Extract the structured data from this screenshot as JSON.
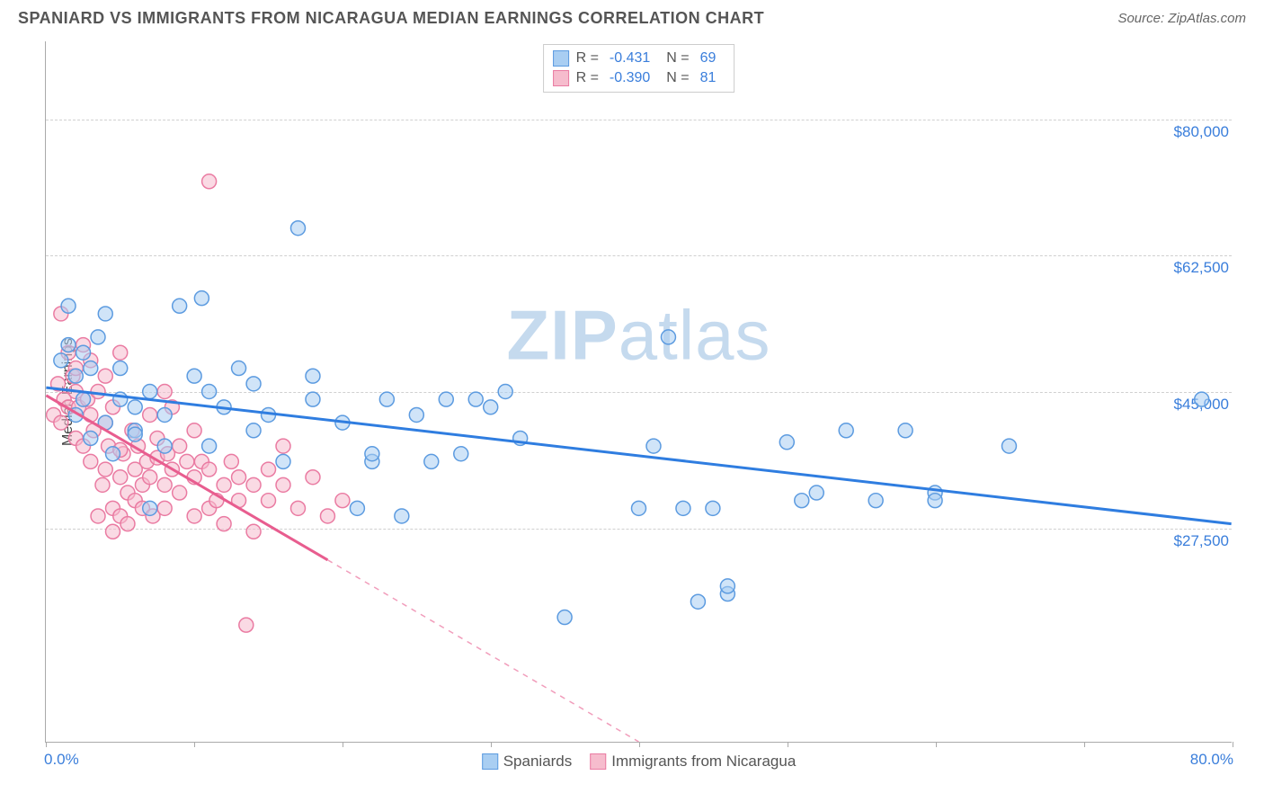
{
  "title": "SPANIARD VS IMMIGRANTS FROM NICARAGUA MEDIAN EARNINGS CORRELATION CHART",
  "source": "Source: ZipAtlas.com",
  "watermark": {
    "bold": "ZIP",
    "light": "atlas"
  },
  "yaxis_title": "Median Earnings",
  "chart": {
    "type": "scatter",
    "xlim": [
      0,
      80
    ],
    "ylim": [
      0,
      90000
    ],
    "xtick_positions": [
      0,
      10,
      20,
      30,
      40,
      50,
      60,
      70,
      80
    ],
    "xaxis_label_left": "0.0%",
    "xaxis_label_right": "80.0%",
    "ytick_values": [
      27500,
      45000,
      62500,
      80000
    ],
    "ytick_labels": [
      "$27,500",
      "$45,000",
      "$62,500",
      "$80,000"
    ],
    "grid_color": "#d0d0d0",
    "background_color": "#ffffff",
    "marker_radius": 8,
    "marker_stroke_width": 1.5,
    "series": [
      {
        "name": "Spaniards",
        "color_fill": "#a9cef2",
        "color_stroke": "#5c9be0",
        "fill_opacity": 0.55,
        "correlation_R": "-0.431",
        "correlation_N": "69",
        "trend": {
          "x1": 0,
          "y1": 45500,
          "x2": 80,
          "y2": 28000,
          "solid_until_x": 80,
          "color": "#2f7de0",
          "width": 3
        },
        "points": [
          [
            1,
            49000
          ],
          [
            1.5,
            51000
          ],
          [
            1.5,
            56000
          ],
          [
            2,
            47000
          ],
          [
            2,
            42000
          ],
          [
            2.5,
            44000
          ],
          [
            2.5,
            50000
          ],
          [
            3,
            48000
          ],
          [
            3,
            39000
          ],
          [
            3.5,
            52000
          ],
          [
            4,
            41000
          ],
          [
            4,
            55000
          ],
          [
            4.5,
            37000
          ],
          [
            5,
            44000
          ],
          [
            5,
            48000
          ],
          [
            6,
            40000
          ],
          [
            6,
            43000
          ],
          [
            7,
            45000
          ],
          [
            7,
            30000
          ],
          [
            8,
            42000
          ],
          [
            8,
            38000
          ],
          [
            9,
            56000
          ],
          [
            10,
            47000
          ],
          [
            10.5,
            57000
          ],
          [
            11,
            38000
          ],
          [
            12,
            43000
          ],
          [
            13,
            48000
          ],
          [
            14,
            40000
          ],
          [
            14,
            46000
          ],
          [
            15,
            42000
          ],
          [
            16,
            36000
          ],
          [
            17,
            66000
          ],
          [
            18,
            47000
          ],
          [
            18,
            44000
          ],
          [
            20,
            41000
          ],
          [
            21,
            30000
          ],
          [
            22,
            36000
          ],
          [
            22,
            37000
          ],
          [
            23,
            44000
          ],
          [
            24,
            29000
          ],
          [
            25,
            42000
          ],
          [
            26,
            36000
          ],
          [
            27,
            44000
          ],
          [
            28,
            37000
          ],
          [
            29,
            44000
          ],
          [
            30,
            43000
          ],
          [
            31,
            45000
          ],
          [
            32,
            39000
          ],
          [
            35,
            16000
          ],
          [
            40,
            30000
          ],
          [
            41,
            38000
          ],
          [
            42,
            52000
          ],
          [
            43,
            30000
          ],
          [
            44,
            18000
          ],
          [
            45,
            30000
          ],
          [
            46,
            19000
          ],
          [
            46,
            20000
          ],
          [
            50,
            38500
          ],
          [
            51,
            31000
          ],
          [
            52,
            32000
          ],
          [
            54,
            40000
          ],
          [
            56,
            31000
          ],
          [
            58,
            40000
          ],
          [
            60,
            32000
          ],
          [
            60,
            31000
          ],
          [
            65,
            38000
          ],
          [
            78,
            44000
          ],
          [
            6,
            39500
          ],
          [
            11,
            45000
          ]
        ]
      },
      {
        "name": "Immigrants from Nicaragua",
        "color_fill": "#f6bccd",
        "color_stroke": "#ea7ba2",
        "fill_opacity": 0.55,
        "correlation_R": "-0.390",
        "correlation_N": "81",
        "trend": {
          "x1": 0,
          "y1": 44500,
          "x2": 40,
          "y2": 0,
          "solid_until_x": 19,
          "color": "#e85d8f",
          "width": 3
        },
        "points": [
          [
            0.5,
            42000
          ],
          [
            0.8,
            46000
          ],
          [
            1,
            55000
          ],
          [
            1,
            41000
          ],
          [
            1.2,
            44000
          ],
          [
            1.5,
            50000
          ],
          [
            1.5,
            43000
          ],
          [
            1.8,
            47000
          ],
          [
            2,
            39000
          ],
          [
            2,
            48000
          ],
          [
            2,
            45000
          ],
          [
            2.2,
            43000
          ],
          [
            2.5,
            51000
          ],
          [
            2.5,
            38000
          ],
          [
            2.8,
            44000
          ],
          [
            3,
            49000
          ],
          [
            3,
            42000
          ],
          [
            3,
            36000
          ],
          [
            3.2,
            40000
          ],
          [
            3.5,
            45000
          ],
          [
            3.5,
            29000
          ],
          [
            3.8,
            33000
          ],
          [
            4,
            47000
          ],
          [
            4,
            35000
          ],
          [
            4,
            41000
          ],
          [
            4.2,
            38000
          ],
          [
            4.5,
            30000
          ],
          [
            4.5,
            43000
          ],
          [
            5,
            50000
          ],
          [
            5,
            34000
          ],
          [
            5,
            29000
          ],
          [
            5.2,
            37000
          ],
          [
            5.5,
            32000
          ],
          [
            5.5,
            28000
          ],
          [
            5.8,
            40000
          ],
          [
            6,
            35000
          ],
          [
            6,
            31000
          ],
          [
            6.2,
            38000
          ],
          [
            6.5,
            30000
          ],
          [
            6.5,
            33000
          ],
          [
            6.8,
            36000
          ],
          [
            7,
            42000
          ],
          [
            7,
            34000
          ],
          [
            7.2,
            29000
          ],
          [
            7.5,
            36500
          ],
          [
            7.5,
            39000
          ],
          [
            8,
            33000
          ],
          [
            8,
            30000
          ],
          [
            8.2,
            37000
          ],
          [
            8.5,
            35000
          ],
          [
            8.5,
            43000
          ],
          [
            9,
            32000
          ],
          [
            9,
            38000
          ],
          [
            9.5,
            36000
          ],
          [
            10,
            34000
          ],
          [
            10,
            40000
          ],
          [
            10,
            29000
          ],
          [
            10.5,
            36000
          ],
          [
            11,
            30000
          ],
          [
            11,
            35000
          ],
          [
            11,
            72000
          ],
          [
            11.5,
            31000
          ],
          [
            12,
            33000
          ],
          [
            12,
            28000
          ],
          [
            12.5,
            36000
          ],
          [
            13,
            31000
          ],
          [
            13,
            34000
          ],
          [
            13.5,
            15000
          ],
          [
            14,
            33000
          ],
          [
            14,
            27000
          ],
          [
            15,
            35000
          ],
          [
            15,
            31000
          ],
          [
            16,
            38000
          ],
          [
            16,
            33000
          ],
          [
            17,
            30000
          ],
          [
            18,
            34000
          ],
          [
            19,
            29000
          ],
          [
            20,
            31000
          ],
          [
            8,
            45000
          ],
          [
            4.5,
            27000
          ],
          [
            5,
            37500
          ]
        ]
      }
    ]
  },
  "legend_bottom": [
    {
      "label": "Spaniards",
      "fill": "#a9cef2",
      "stroke": "#5c9be0"
    },
    {
      "label": "Immigrants from Nicaragua",
      "fill": "#f6bccd",
      "stroke": "#ea7ba2"
    }
  ],
  "colors": {
    "title_text": "#555555",
    "axis_label": "#3a7edb"
  }
}
